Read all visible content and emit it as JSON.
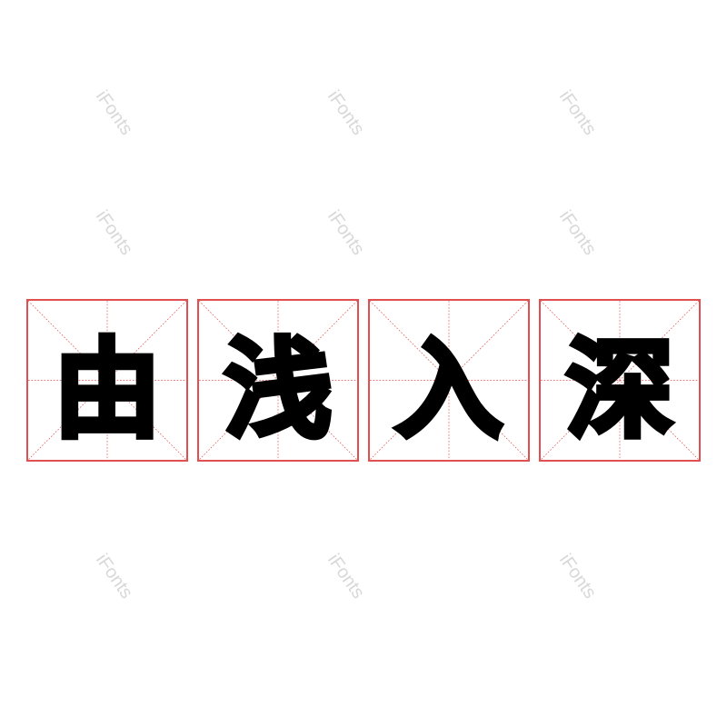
{
  "characters": [
    "由",
    "浅",
    "入",
    "深"
  ],
  "watermark": "iFonts",
  "colors": {
    "grid": "#e05050",
    "glyph": "#000000",
    "watermark": "#d8d8d8"
  }
}
